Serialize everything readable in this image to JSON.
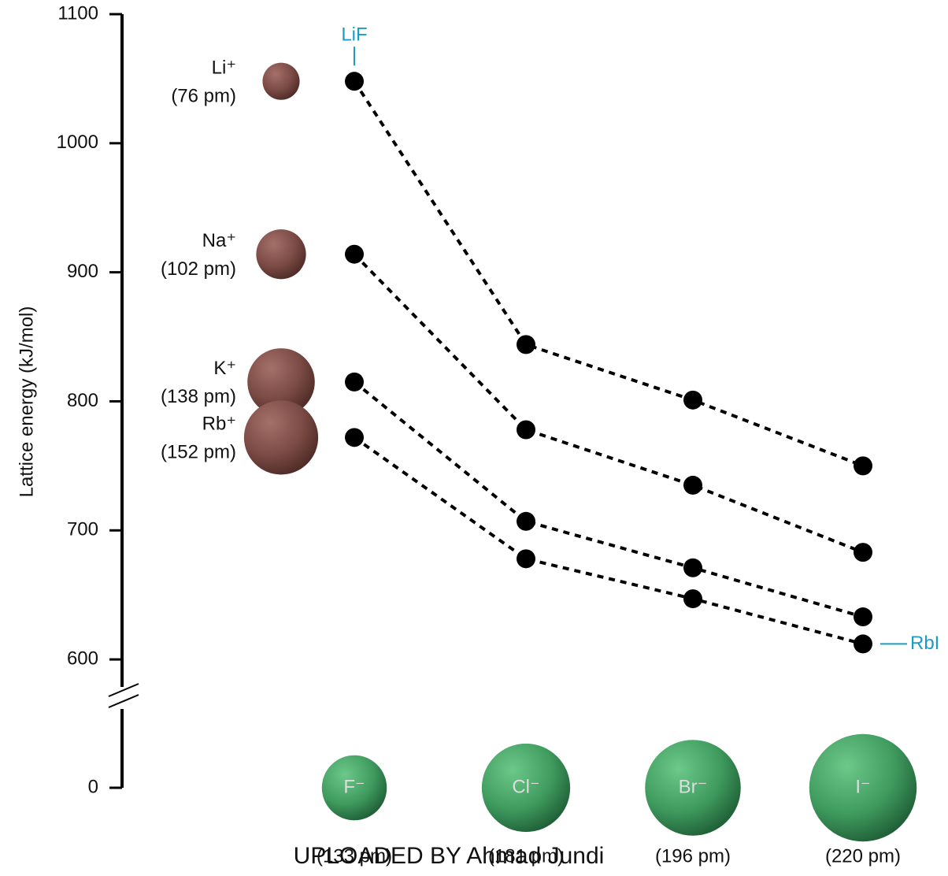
{
  "chart_data": {
    "type": "line",
    "y_label": "Lattice energy (kJ/mol)",
    "ylim": [
      0,
      1100
    ],
    "axis_break": [
      0,
      550
    ],
    "yticks": [
      0,
      600,
      700,
      800,
      900,
      1000,
      1100
    ],
    "categories": [
      "F⁻",
      "Cl⁻",
      "Br⁻",
      "I⁻"
    ],
    "category_radii": [
      133,
      181,
      196,
      220
    ],
    "category_radius_labels": [
      "(133 pm)",
      "(181 pm)",
      "(196 pm)",
      "(220 pm)"
    ],
    "series": [
      {
        "name": "Li⁺",
        "radius": 76,
        "radius_label": "(76 pm)",
        "color": "#000000",
        "values": [
          1048,
          844,
          801,
          750
        ]
      },
      {
        "name": "Na⁺",
        "radius": 102,
        "radius_label": "(102 pm)",
        "color": "#000000",
        "values": [
          914,
          778,
          735,
          683
        ]
      },
      {
        "name": "K⁺",
        "radius": 138,
        "radius_label": "(138 pm)",
        "color": "#000000",
        "values": [
          815,
          707,
          671,
          633
        ]
      },
      {
        "name": "Rb⁺",
        "radius": 152,
        "radius_label": "(152 pm)",
        "color": "#000000",
        "values": [
          772,
          678,
          647,
          612
        ]
      }
    ],
    "annotations": [
      "LiF",
      "RbI"
    ],
    "annotation_color": "#1a9cc4",
    "cation_color": "#7a4a44",
    "anion_color": "#3f9a5e",
    "watermark": "UPLOADED BY Ahmad Jundi"
  }
}
